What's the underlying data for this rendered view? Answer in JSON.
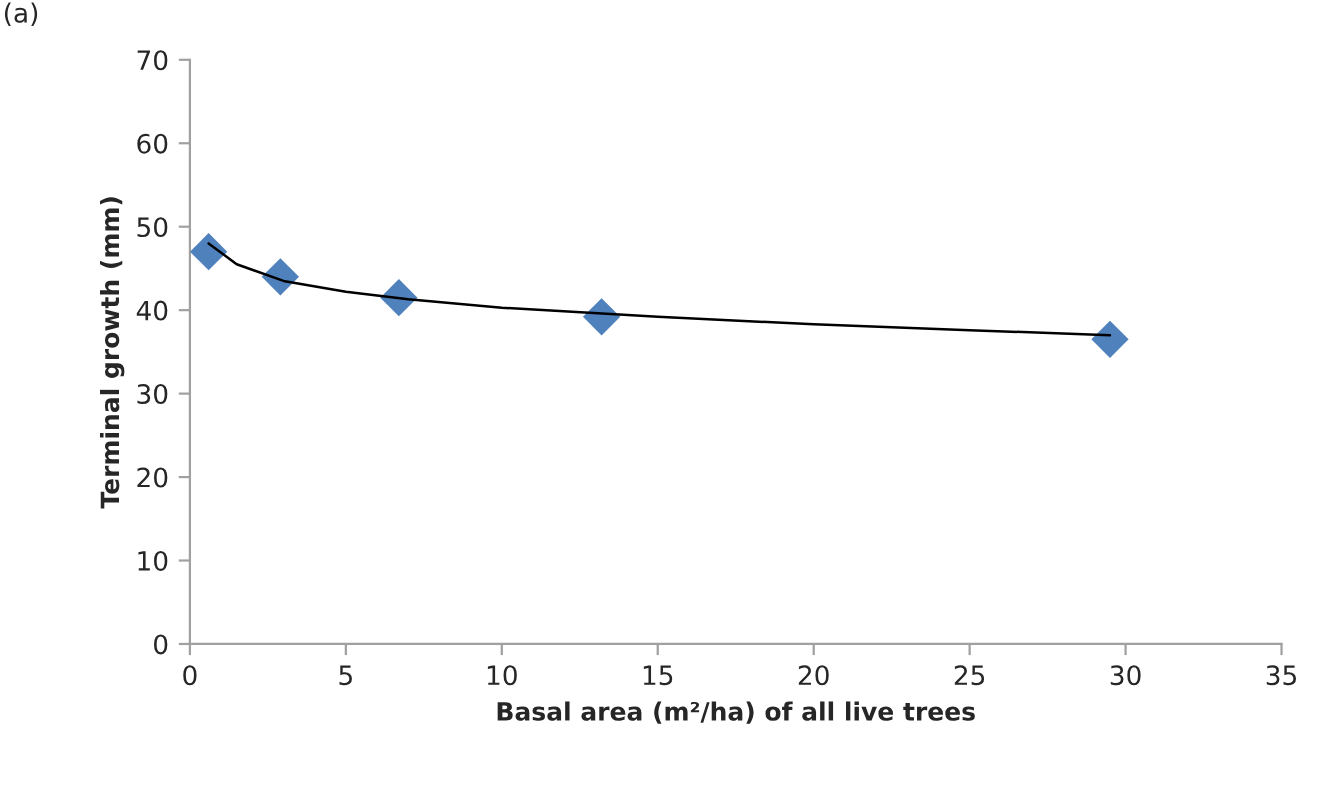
{
  "chart_data": {
    "type": "scatter",
    "xlabel": "Basal area (m²/ha) of all live trees",
    "ylabel": "Terminal growth (mm)",
    "annotations": [
      "(a)"
    ],
    "xlim": [
      0,
      35
    ],
    "xticks": [
      0,
      5,
      10,
      15,
      20,
      25,
      30,
      35
    ],
    "ylim": [
      0,
      70
    ],
    "yticks": [
      0,
      10,
      20,
      30,
      40,
      50,
      60,
      70
    ],
    "grid": false,
    "legend": false,
    "marker": "diamond",
    "series": [
      {
        "color": "#4f81bd",
        "x": [
          0.6,
          2.9,
          6.7,
          13.2,
          29.5
        ],
        "values": [
          47,
          44,
          41.5,
          39.2,
          36.5
        ]
      },
      {
        "type": "line",
        "color": "#000000",
        "line_style": "solid",
        "marker": "none",
        "x": [
          0.6,
          1.5,
          3,
          5,
          7,
          10,
          15,
          20,
          25,
          29.5
        ],
        "values": [
          48,
          45.5,
          43.5,
          42.2,
          41.3,
          40.3,
          39.2,
          38.3,
          37.6,
          37.0
        ]
      }
    ]
  }
}
